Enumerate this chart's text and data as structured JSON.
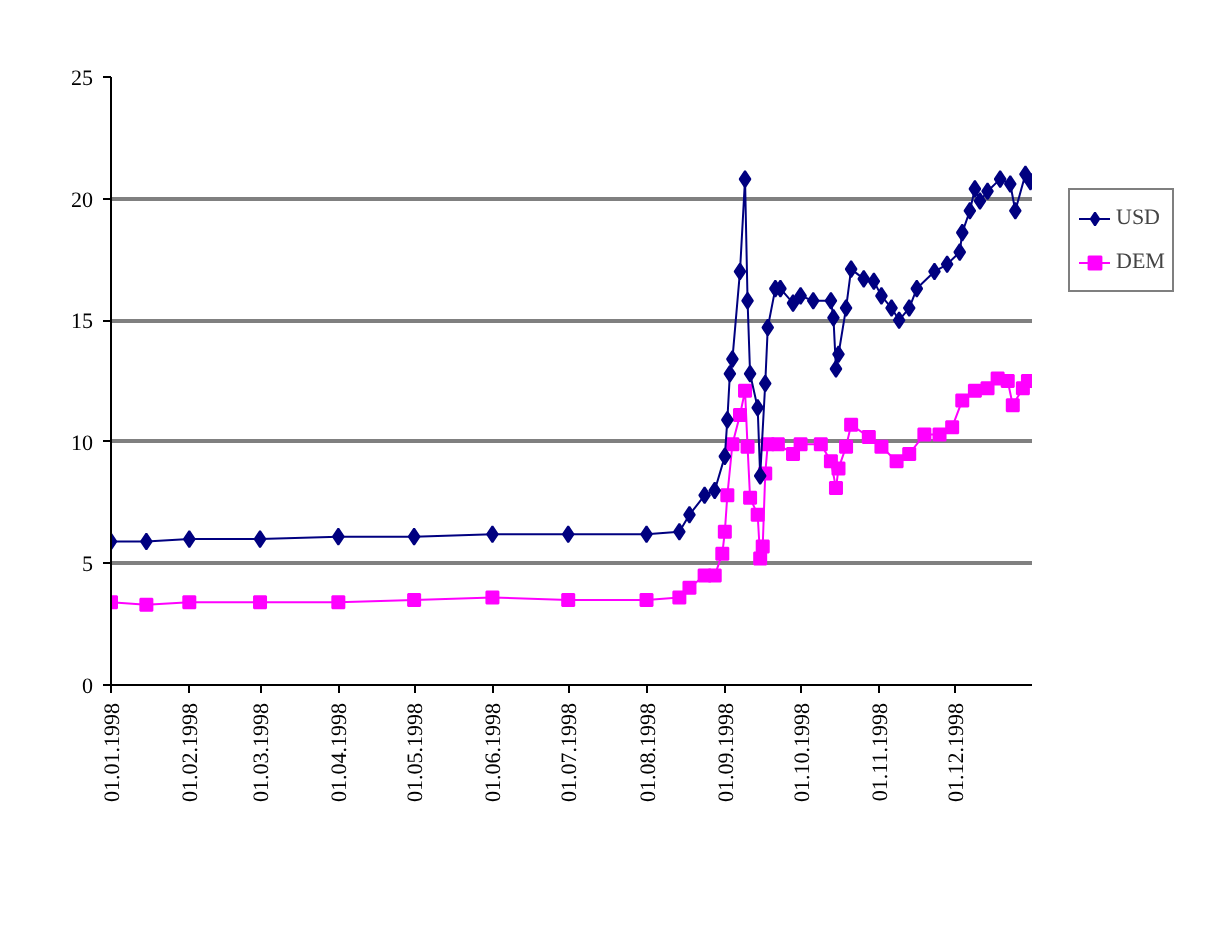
{
  "chart_data": {
    "type": "line",
    "xlim": [
      "1998-01-01",
      "1999-01-01"
    ],
    "xticks": [
      {
        "value": "1998-01-01",
        "label": "01.01.1998"
      },
      {
        "value": "1998-02-01",
        "label": "01.02.1998"
      },
      {
        "value": "1998-03-01",
        "label": "01.03.1998"
      },
      {
        "value": "1998-04-01",
        "label": "01.04.1998"
      },
      {
        "value": "1998-05-01",
        "label": "01.05.1998"
      },
      {
        "value": "1998-06-01",
        "label": "01.06.1998"
      },
      {
        "value": "1998-07-01",
        "label": "01.07.1998"
      },
      {
        "value": "1998-08-01",
        "label": "01.08.1998"
      },
      {
        "value": "1998-09-01",
        "label": "01.09.1998"
      },
      {
        "value": "1998-10-01",
        "label": "01.10.1998"
      },
      {
        "value": "1998-11-01",
        "label": "01.11.1998"
      },
      {
        "value": "1998-12-01",
        "label": "01.12.1998"
      },
      {
        "value": "1999-01-01",
        "label": null
      }
    ],
    "ylim": [
      0,
      25
    ],
    "yticks": [
      0,
      5,
      10,
      15,
      20,
      25
    ],
    "grid": "y",
    "legend": "right",
    "series": [
      {
        "name": "USD",
        "color": "#000080",
        "marker": "diamond",
        "x": [
          "1998-01-01",
          "1998-01-15",
          "1998-02-01",
          "1998-03-01",
          "1998-04-01",
          "1998-05-01",
          "1998-06-01",
          "1998-07-01",
          "1998-08-01",
          "1998-08-14",
          "1998-08-18",
          "1998-08-24",
          "1998-08-28",
          "1998-09-01",
          "1998-09-02",
          "1998-09-03",
          "1998-09-04",
          "1998-09-07",
          "1998-09-09",
          "1998-09-10",
          "1998-09-11",
          "1998-09-14",
          "1998-09-15",
          "1998-09-17",
          "1998-09-18",
          "1998-09-21",
          "1998-09-23",
          "1998-09-28",
          "1998-10-01",
          "1998-10-06",
          "1998-10-13",
          "1998-10-14",
          "1998-10-15",
          "1998-10-16",
          "1998-10-19",
          "1998-10-21",
          "1998-10-26",
          "1998-10-30",
          "1998-11-02",
          "1998-11-06",
          "1998-11-09",
          "1998-11-13",
          "1998-11-16",
          "1998-11-23",
          "1998-11-28",
          "1998-12-03",
          "1998-12-04",
          "1998-12-07",
          "1998-12-09",
          "1998-12-11",
          "1998-12-14",
          "1998-12-19",
          "1998-12-23",
          "1998-12-25",
          "1998-12-29",
          "1998-12-31"
        ],
        "values": [
          5.9,
          5.9,
          6.0,
          6.0,
          6.1,
          6.1,
          6.2,
          6.2,
          6.2,
          6.3,
          7.0,
          7.8,
          8.0,
          9.4,
          10.9,
          12.8,
          13.4,
          17.0,
          20.8,
          15.8,
          12.8,
          11.4,
          8.6,
          12.4,
          14.7,
          16.3,
          16.3,
          15.7,
          16.0,
          15.8,
          15.8,
          15.1,
          13.0,
          13.6,
          15.5,
          17.1,
          16.7,
          16.6,
          16.0,
          15.5,
          15.0,
          15.5,
          16.3,
          17.0,
          17.3,
          17.8,
          18.6,
          19.5,
          20.4,
          19.9,
          20.3,
          20.8,
          20.6,
          19.5,
          21.0,
          20.7
        ]
      },
      {
        "name": "DEM",
        "color": "#ff00ff",
        "marker": "square",
        "x": [
          "1998-01-01",
          "1998-01-15",
          "1998-02-01",
          "1998-03-01",
          "1998-04-01",
          "1998-05-01",
          "1998-06-01",
          "1998-07-01",
          "1998-08-01",
          "1998-08-14",
          "1998-08-18",
          "1998-08-24",
          "1998-08-28",
          "1998-08-31",
          "1998-09-01",
          "1998-09-02",
          "1998-09-04",
          "1998-09-07",
          "1998-09-09",
          "1998-09-10",
          "1998-09-11",
          "1998-09-14",
          "1998-09-15",
          "1998-09-16",
          "1998-09-17",
          "1998-09-18",
          "1998-09-22",
          "1998-09-28",
          "1998-10-01",
          "1998-10-09",
          "1998-10-13",
          "1998-10-15",
          "1998-10-16",
          "1998-10-19",
          "1998-10-21",
          "1998-10-28",
          "1998-11-02",
          "1998-11-08",
          "1998-11-13",
          "1998-11-19",
          "1998-11-25",
          "1998-11-30",
          "1998-12-04",
          "1998-12-09",
          "1998-12-14",
          "1998-12-18",
          "1998-12-22",
          "1998-12-24",
          "1998-12-28",
          "1998-12-30"
        ],
        "values": [
          3.4,
          3.3,
          3.4,
          3.4,
          3.4,
          3.5,
          3.6,
          3.5,
          3.5,
          3.6,
          4.0,
          4.5,
          4.5,
          5.4,
          6.3,
          7.8,
          9.9,
          11.1,
          12.1,
          9.8,
          7.7,
          7.0,
          5.2,
          5.7,
          8.7,
          9.9,
          9.9,
          9.5,
          9.9,
          9.9,
          9.2,
          8.1,
          8.9,
          9.8,
          10.7,
          10.2,
          9.8,
          9.2,
          9.5,
          10.3,
          10.3,
          10.6,
          11.7,
          12.1,
          12.2,
          12.6,
          12.5,
          11.5,
          12.2,
          12.5
        ]
      }
    ]
  }
}
